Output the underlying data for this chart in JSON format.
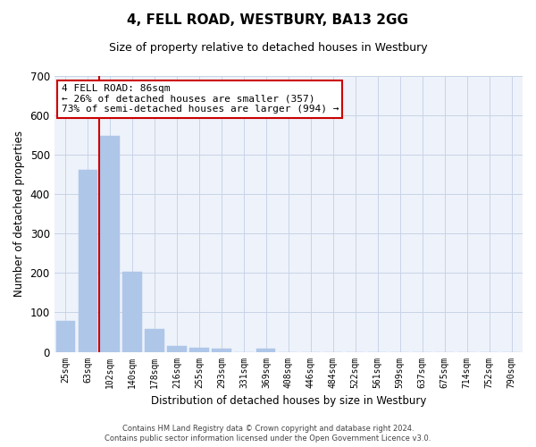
{
  "title": "4, FELL ROAD, WESTBURY, BA13 2GG",
  "subtitle": "Size of property relative to detached houses in Westbury",
  "xlabel": "Distribution of detached houses by size in Westbury",
  "ylabel": "Number of detached properties",
  "bar_labels": [
    "25sqm",
    "63sqm",
    "102sqm",
    "140sqm",
    "178sqm",
    "216sqm",
    "255sqm",
    "293sqm",
    "331sqm",
    "369sqm",
    "408sqm",
    "446sqm",
    "484sqm",
    "522sqm",
    "561sqm",
    "599sqm",
    "637sqm",
    "675sqm",
    "714sqm",
    "752sqm",
    "790sqm"
  ],
  "bar_values": [
    78,
    462,
    548,
    204,
    57,
    15,
    10,
    9,
    0,
    9,
    0,
    0,
    0,
    0,
    0,
    0,
    0,
    0,
    0,
    0,
    0
  ],
  "bar_color": "#aec6e8",
  "vline_x": 1.5,
  "annotation_box_text": "4 FELL ROAD: 86sqm\n← 26% of detached houses are smaller (357)\n73% of semi-detached houses are larger (994) →",
  "ylim": [
    0,
    700
  ],
  "yticks": [
    0,
    100,
    200,
    300,
    400,
    500,
    600,
    700
  ],
  "grid_color": "#c8d4e8",
  "background_color": "#eef2fa",
  "footer_line1": "Contains HM Land Registry data © Crown copyright and database right 2024.",
  "footer_line2": "Contains public sector information licensed under the Open Government Licence v3.0.",
  "vline_color": "#cc0000",
  "box_edge_color": "#cc0000",
  "title_fontsize": 11,
  "subtitle_fontsize": 9
}
